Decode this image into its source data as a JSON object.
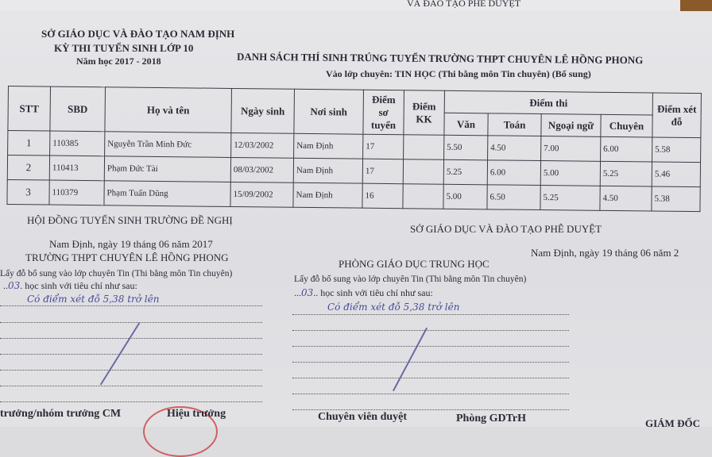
{
  "back_sheet": {
    "text": "VÀ ĐÀO TẠO PHÊ DUYỆT"
  },
  "header": {
    "department": "SỞ GIÁO DỤC VÀ ĐÀO TẠO NAM ĐỊNH",
    "exam": "KỲ THI TUYỂN SINH LỚP 10",
    "year": "Năm học 2017 - 2018",
    "title": "DANH SÁCH THÍ SINH TRÚNG TUYỂN TRƯỜNG THPT CHUYÊN LÊ HỒNG PHONG",
    "subtitle": "Vào lớp chuyên: TIN HỌC (Thi bằng môn Tin chuyên) (Bổ sung)"
  },
  "table": {
    "headers": {
      "stt": "STT",
      "sbd": "SBD",
      "name": "Họ và tên",
      "dob": "Ngày sinh",
      "pob": "Nơi sinh",
      "so_tuyen": "Điểm sơ tuyển",
      "kk": "Điểm KK",
      "diem_thi": "Điểm thi",
      "van": "Văn",
      "toan": "Toán",
      "ngoai_ngu": "Ngoại ngữ",
      "chuyen": "Chuyên",
      "xet_do": "Điểm xét đỗ"
    },
    "rows": [
      {
        "stt": "1",
        "sbd": "110385",
        "name": "Nguyễn Trần Minh Đức",
        "dob": "12/03/2002",
        "pob": "Nam Định",
        "so_tuyen": "17",
        "kk": "",
        "van": "5.50",
        "toan": "4.50",
        "ngoai_ngu": "7.00",
        "chuyen": "6.00",
        "xet_do": "5.58"
      },
      {
        "stt": "2",
        "sbd": "110413",
        "name": "Phạm Đức Tài",
        "dob": "08/03/2002",
        "pob": "Nam Định",
        "so_tuyen": "17",
        "kk": "",
        "van": "5.25",
        "toan": "6.00",
        "ngoai_ngu": "5.00",
        "chuyen": "5.25",
        "xet_do": "5.46"
      },
      {
        "stt": "3",
        "sbd": "110379",
        "name": "Phạm Tuấn Dũng",
        "dob": "15/09/2002",
        "pob": "Nam Định",
        "so_tuyen": "16",
        "kk": "",
        "van": "5.00",
        "toan": "6.50",
        "ngoai_ngu": "5.25",
        "chuyen": "4.50",
        "xet_do": "5.38"
      }
    ]
  },
  "left": {
    "heading": "HỘI ĐỒNG TUYỂN SINH TRƯỜNG ĐỀ NGHỊ",
    "date": "Nam Định, ngày 19 tháng 06 năm 2017",
    "school": "TRƯỜNG THPT CHUYÊN LÊ HỒNG PHONG",
    "line1": "Lấy đỗ bổ sung vào lớp chuyên Tin (Thi bằng môn Tin chuyên)",
    "count": "03",
    "line2": ". học sinh với tiêu chí như sau:",
    "handwritten": "Có điểm xét đỗ 5,38 trở lên",
    "sign1": "trưởng/nhóm trưởng CM",
    "sign2": "Hiệu trưởng"
  },
  "right": {
    "heading": "SỞ GIÁO DỤC VÀ ĐÀO TẠO PHÊ DUYỆT",
    "date": "Nam Định, ngày 19 tháng 06 năm 2",
    "office": "PHÒNG GIÁO DỤC TRUNG HỌC",
    "line1": "Lấy đỗ bổ sung vào lớp chuyên Tin (Thi bằng môn Tin chuyên)",
    "count": "03",
    "line2": ".. học sinh với tiêu chí như sau:",
    "handwritten": "Có điểm xét đỗ 5,38 trở lên",
    "sign1": "Chuyên viên duyệt",
    "sign2": "Phòng GDTrH",
    "sign3": "GIÁM ĐỐC"
  }
}
